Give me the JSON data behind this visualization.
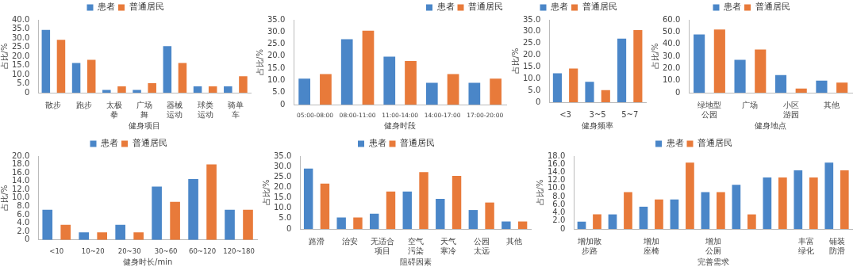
{
  "chart_data": [
    {
      "type": "bar",
      "xlabel": "健身项目",
      "ylabel": "占比/%",
      "categories": [
        "散步",
        "跑步",
        "太极拳",
        "广场舞",
        "器械运动",
        "球类运动",
        "骑单车"
      ],
      "series": [
        {
          "name": "患者",
          "color": "#4a86c8",
          "values": [
            34.5,
            16.3,
            1.5,
            1.5,
            25.5,
            3.5,
            3.5
          ]
        },
        {
          "name": "普通居民",
          "color": "#e87a3a",
          "values": [
            29,
            18,
            3.5,
            5.2,
            16.3,
            3.5,
            9
          ]
        }
      ],
      "ylim": [
        0,
        40
      ],
      "yticks": [
        {
          "value": 0,
          "label": "0"
        },
        {
          "value": 5,
          "label": "5.0"
        },
        {
          "value": 10,
          "label": "10.0"
        },
        {
          "value": 15,
          "label": "15.0"
        },
        {
          "value": 20,
          "label": "20.0"
        },
        {
          "value": 25,
          "label": "25.0"
        },
        {
          "value": 30,
          "label": "30.0"
        },
        {
          "value": 35,
          "label": "35.0"
        },
        {
          "value": 40,
          "label": "40.0"
        }
      ],
      "legend": "top",
      "grid": false
    },
    {
      "type": "bar",
      "xlabel": "健身时段",
      "ylabel": "占比/%",
      "categories": [
        "05:00-08:00",
        "08:00-11:00",
        "11:00-14:00",
        "14:00-17:00",
        "17:00-20:00"
      ],
      "series": [
        {
          "name": "患者",
          "color": "#4a86c8",
          "values": [
            10.7,
            27,
            19.8,
            9,
            9
          ]
        },
        {
          "name": "普通居民",
          "color": "#e87a3a",
          "values": [
            12.6,
            30.5,
            18,
            12.6,
            10.7
          ]
        }
      ],
      "ylim": [
        0,
        35
      ],
      "yticks": [
        {
          "value": 0,
          "label": "0"
        },
        {
          "value": 5,
          "label": "5.0"
        },
        {
          "value": 10,
          "label": "10.0"
        },
        {
          "value": 15,
          "label": "15.0"
        },
        {
          "value": 20,
          "label": "20.0"
        },
        {
          "value": 25,
          "label": "25.0"
        },
        {
          "value": 30,
          "label": "30.0"
        },
        {
          "value": 35,
          "label": "35.0"
        }
      ],
      "legend": "top right",
      "grid": false
    },
    {
      "type": "bar",
      "xlabel": "健身频率",
      "ylabel": "占比/%",
      "categories": [
        "<3",
        "3~5",
        "5~7"
      ],
      "series": [
        {
          "name": "患者",
          "color": "#4a86c8",
          "values": [
            12.3,
            8.7,
            27
          ]
        },
        {
          "name": "普通居民",
          "color": "#e87a3a",
          "values": [
            14.3,
            5.1,
            30.6
          ]
        }
      ],
      "ylim": [
        0,
        35
      ],
      "yticks": [
        {
          "value": 0,
          "label": "0"
        },
        {
          "value": 5,
          "label": "5.0"
        },
        {
          "value": 10,
          "label": "10.0"
        },
        {
          "value": 15,
          "label": "15.0"
        },
        {
          "value": 20,
          "label": "20.0"
        },
        {
          "value": 25,
          "label": "25.0"
        },
        {
          "value": 30,
          "label": "30.0"
        },
        {
          "value": 35,
          "label": "35.0"
        }
      ],
      "legend": "top",
      "grid": false
    },
    {
      "type": "bar",
      "xlabel": "健身地点",
      "ylabel": "占比/%",
      "categories": [
        "绿地型公园",
        "广场",
        "小区游园",
        "其他"
      ],
      "series": [
        {
          "name": "患者",
          "color": "#4a86c8",
          "values": [
            48,
            27,
            14.5,
            10
          ]
        },
        {
          "name": "普通居民",
          "color": "#e87a3a",
          "values": [
            52,
            35.5,
            3.5,
            8.3
          ]
        }
      ],
      "ylim": [
        0,
        60
      ],
      "yticks": [
        {
          "value": 0,
          "label": "0"
        },
        {
          "value": 10,
          "label": "10.0"
        },
        {
          "value": 20,
          "label": "20.0"
        },
        {
          "value": 30,
          "label": "30.0"
        },
        {
          "value": 40,
          "label": "40.0"
        },
        {
          "value": 50,
          "label": "50.0"
        },
        {
          "value": 60,
          "label": "60.0"
        }
      ],
      "legend": "top",
      "grid": false
    },
    {
      "type": "bar",
      "xlabel": "健身时长/min",
      "ylabel": "占比/%",
      "categories": [
        "<10",
        "10~20",
        "20~30",
        "30~60",
        "60~120",
        "120~180"
      ],
      "series": [
        {
          "name": "患者",
          "color": "#4a86c8",
          "values": [
            7.2,
            1.8,
            3.6,
            12.7,
            14.5,
            7.2
          ]
        },
        {
          "name": "普通居民",
          "color": "#e87a3a",
          "values": [
            3.6,
            1.8,
            1.8,
            9.1,
            18,
            7.2
          ]
        }
      ],
      "ylim": [
        0,
        20
      ],
      "yticks": [
        {
          "value": 0,
          "label": "0"
        },
        {
          "value": 2,
          "label": "2.0"
        },
        {
          "value": 4,
          "label": "4.0"
        },
        {
          "value": 6,
          "label": "6.0"
        },
        {
          "value": 8,
          "label": "8.0"
        },
        {
          "value": 10,
          "label": "10.0"
        },
        {
          "value": 12,
          "label": "12.0"
        },
        {
          "value": 14,
          "label": "14.0"
        },
        {
          "value": 16,
          "label": "16.0"
        },
        {
          "value": 18,
          "label": "18.0"
        },
        {
          "value": 20,
          "label": "20.0"
        }
      ],
      "legend": "top",
      "grid": false
    },
    {
      "type": "bar",
      "xlabel": "阻碍因素",
      "ylabel": "占比/%",
      "categories": [
        "路滑",
        "治安",
        "无适合项目",
        "空气污染",
        "天气寒冷",
        "公园太远",
        "其他"
      ],
      "series": [
        {
          "name": "患者",
          "color": "#4a86c8",
          "values": [
            29,
            5.5,
            7.3,
            18,
            14.5,
            9.1,
            3.6
          ]
        },
        {
          "name": "普通居民",
          "color": "#e87a3a",
          "values": [
            21.8,
            5.5,
            18,
            27.3,
            25.5,
            12.7,
            3.6
          ]
        }
      ],
      "ylim": [
        0,
        35
      ],
      "yticks": [
        {
          "value": 0,
          "label": "0"
        },
        {
          "value": 5,
          "label": "5.0"
        },
        {
          "value": 10,
          "label": "10.0"
        },
        {
          "value": 15,
          "label": "15.0"
        },
        {
          "value": 20,
          "label": "20.0"
        },
        {
          "value": 25,
          "label": "25.0"
        },
        {
          "value": 30,
          "label": "30.0"
        },
        {
          "value": 35,
          "label": "35.0"
        }
      ],
      "legend": "top",
      "grid": false
    },
    {
      "type": "bar",
      "xlabel": "完善需求",
      "ylabel": "占比/%",
      "categories": [
        "增加散步路",
        null,
        "增加座椅",
        null,
        "增加公厕",
        null,
        null,
        "丰富绿化",
        "铺装防滑"
      ],
      "series": [
        {
          "name": "患者",
          "color": "#4a86c8",
          "values": [
            1.8,
            3.6,
            5.5,
            7.3,
            9.1,
            10.9,
            12.7,
            14.5,
            16.4
          ]
        },
        {
          "name": "普通居民",
          "color": "#e87a3a",
          "values": [
            3.6,
            9.1,
            7.3,
            16.4,
            9.1,
            3.6,
            12.7,
            12.7,
            14.5
          ]
        }
      ],
      "ylim": [
        0,
        18
      ],
      "yticks": [
        {
          "value": 0,
          "label": "0"
        },
        {
          "value": 2,
          "label": "2.0"
        },
        {
          "value": 4,
          "label": "4.0"
        },
        {
          "value": 6,
          "label": "6.0"
        },
        {
          "value": 8,
          "label": "8.0"
        },
        {
          "value": 10,
          "label": "10.0"
        },
        {
          "value": 12,
          "label": "12.0"
        },
        {
          "value": 14,
          "label": "14.0"
        },
        {
          "value": 16,
          "label": "16.0"
        },
        {
          "value": 18,
          "label": "18.0"
        }
      ],
      "legend": "top",
      "grid": false
    }
  ]
}
